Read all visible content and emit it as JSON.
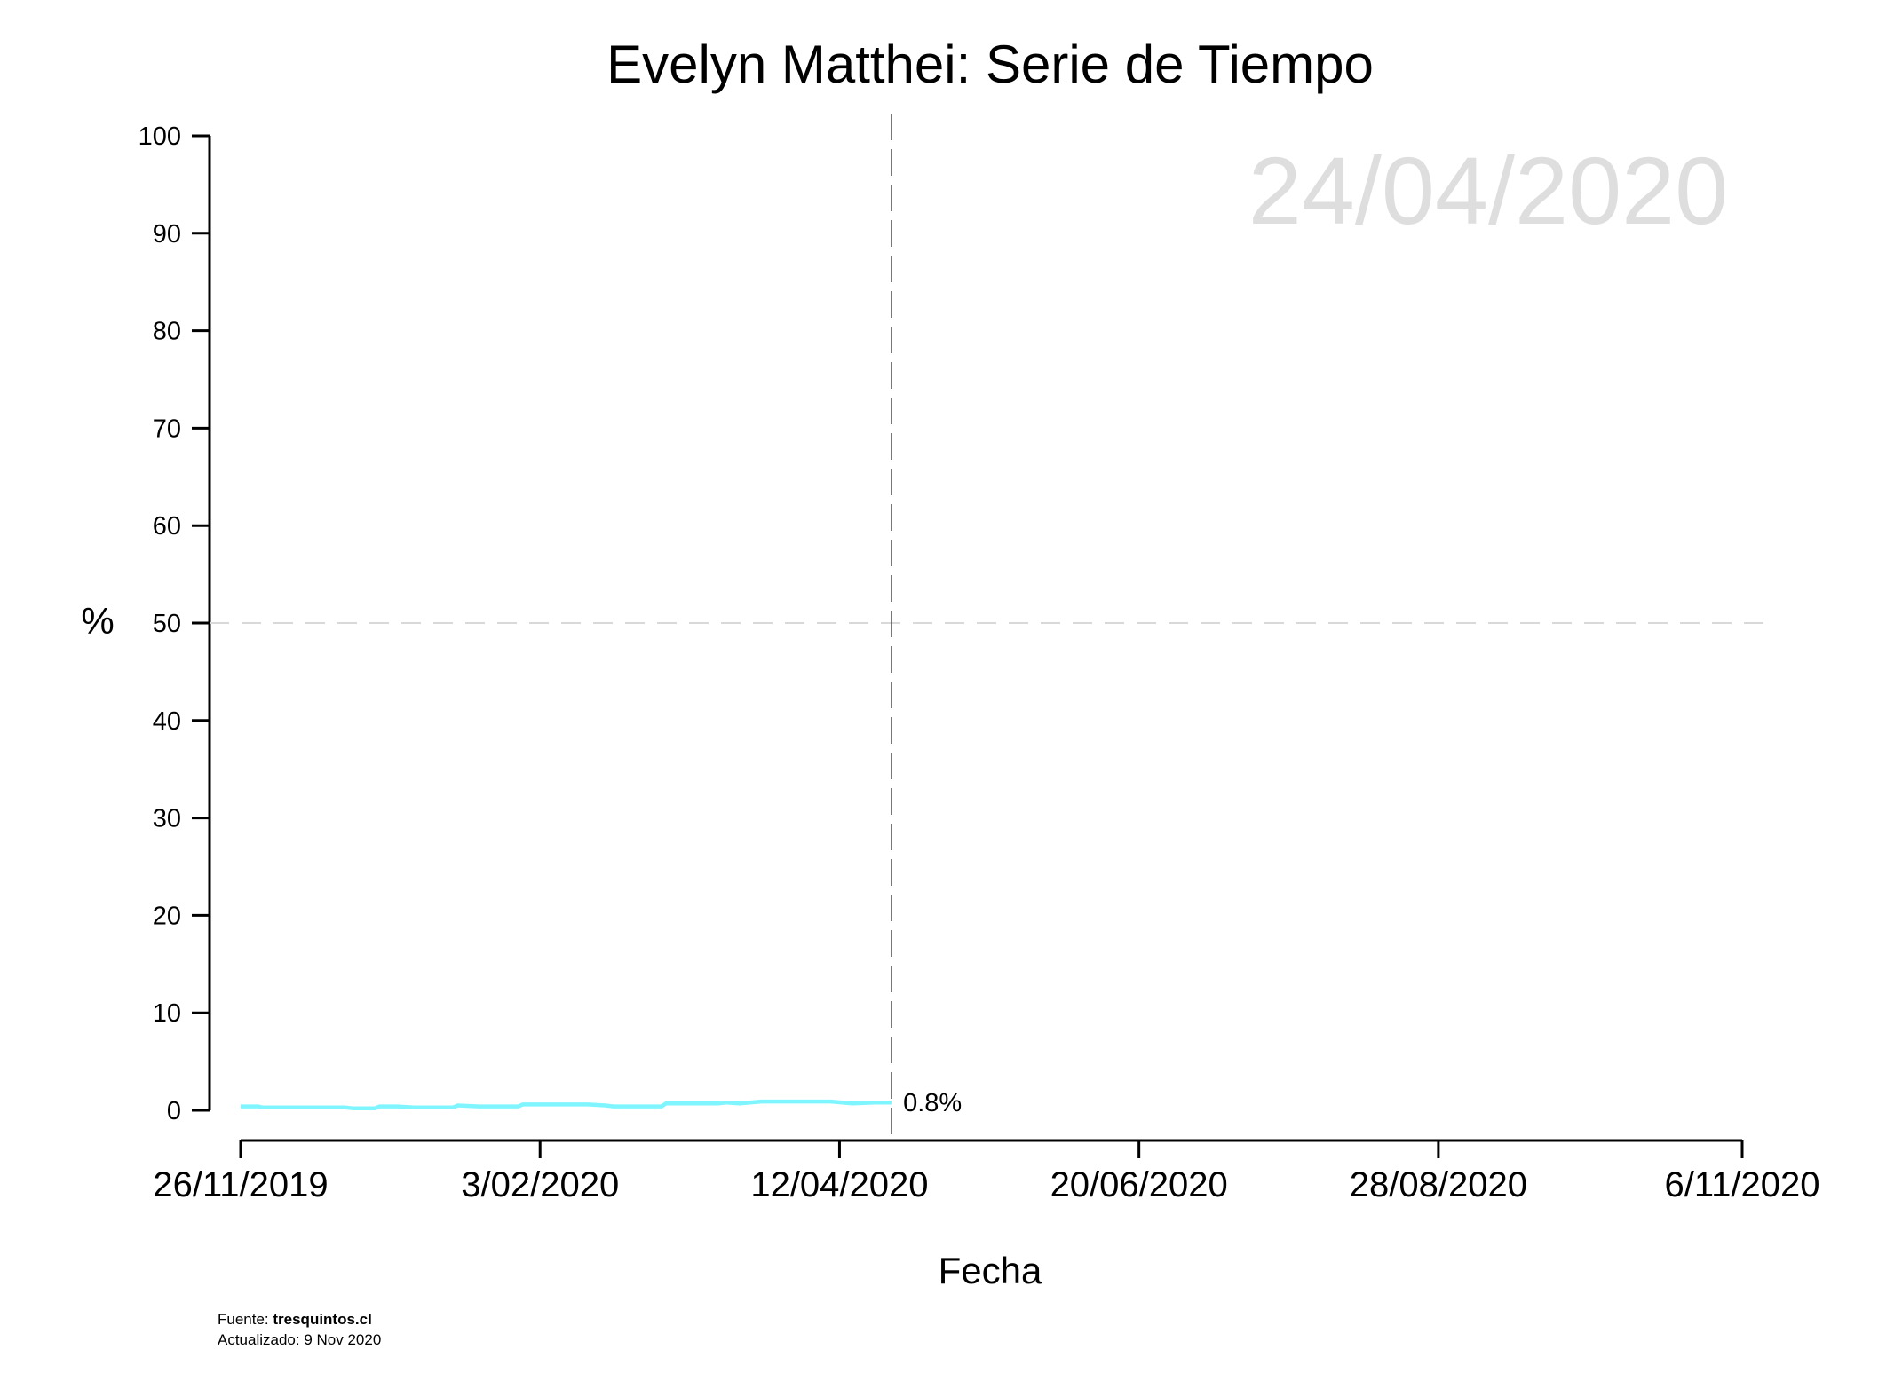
{
  "chart_data": {
    "type": "line",
    "title": "Evelyn Matthei: Serie de Tiempo",
    "xlabel": "Fecha",
    "ylabel": "%",
    "ylim": [
      0,
      100
    ],
    "yticks": [
      0,
      10,
      20,
      30,
      40,
      50,
      60,
      70,
      80,
      90,
      100
    ],
    "xlim": [
      "2019-11-26",
      "2020-11-06"
    ],
    "xticks": [
      "26/11/2019",
      "3/02/2020",
      "12/04/2020",
      "20/06/2020",
      "28/08/2020",
      "6/11/2020"
    ],
    "xtick_dates": [
      "2019-11-26",
      "2020-02-03",
      "2020-04-12",
      "2020-06-20",
      "2020-08-28",
      "2020-11-06"
    ],
    "reference_line_y": 50,
    "current_date": "24/04/2020",
    "current_date_iso": "2020-04-24",
    "end_label": "0.8%",
    "grid": false,
    "series": [
      {
        "color": "#7ff6ff",
        "x": [
          "2019-11-26",
          "2019-11-30",
          "2019-12-01",
          "2019-12-10",
          "2019-12-20",
          "2019-12-22",
          "2019-12-27",
          "2019-12-28",
          "2020-01-01",
          "2020-01-05",
          "2020-01-10",
          "2020-01-14",
          "2020-01-15",
          "2020-01-20",
          "2020-01-25",
          "2020-01-29",
          "2020-01-30",
          "2020-02-05",
          "2020-02-10",
          "2020-02-14",
          "2020-02-18",
          "2020-02-20",
          "2020-02-25",
          "2020-03-02",
          "2020-03-03",
          "2020-03-10",
          "2020-03-15",
          "2020-03-17",
          "2020-03-20",
          "2020-03-25",
          "2020-03-31",
          "2020-04-04",
          "2020-04-05",
          "2020-04-10",
          "2020-04-15",
          "2020-04-20",
          "2020-04-24"
        ],
        "y": [
          0.4,
          0.4,
          0.3,
          0.3,
          0.3,
          0.2,
          0.2,
          0.4,
          0.4,
          0.3,
          0.3,
          0.3,
          0.5,
          0.4,
          0.4,
          0.4,
          0.6,
          0.6,
          0.6,
          0.6,
          0.5,
          0.4,
          0.4,
          0.4,
          0.7,
          0.7,
          0.7,
          0.8,
          0.7,
          0.9,
          0.9,
          0.9,
          0.9,
          0.9,
          0.7,
          0.8,
          0.8
        ]
      }
    ]
  },
  "footer": {
    "source_prefix": "Fuente: ",
    "source_name": "tresquintos.cl",
    "updated": "Actualizado: 9 Nov 2020"
  }
}
